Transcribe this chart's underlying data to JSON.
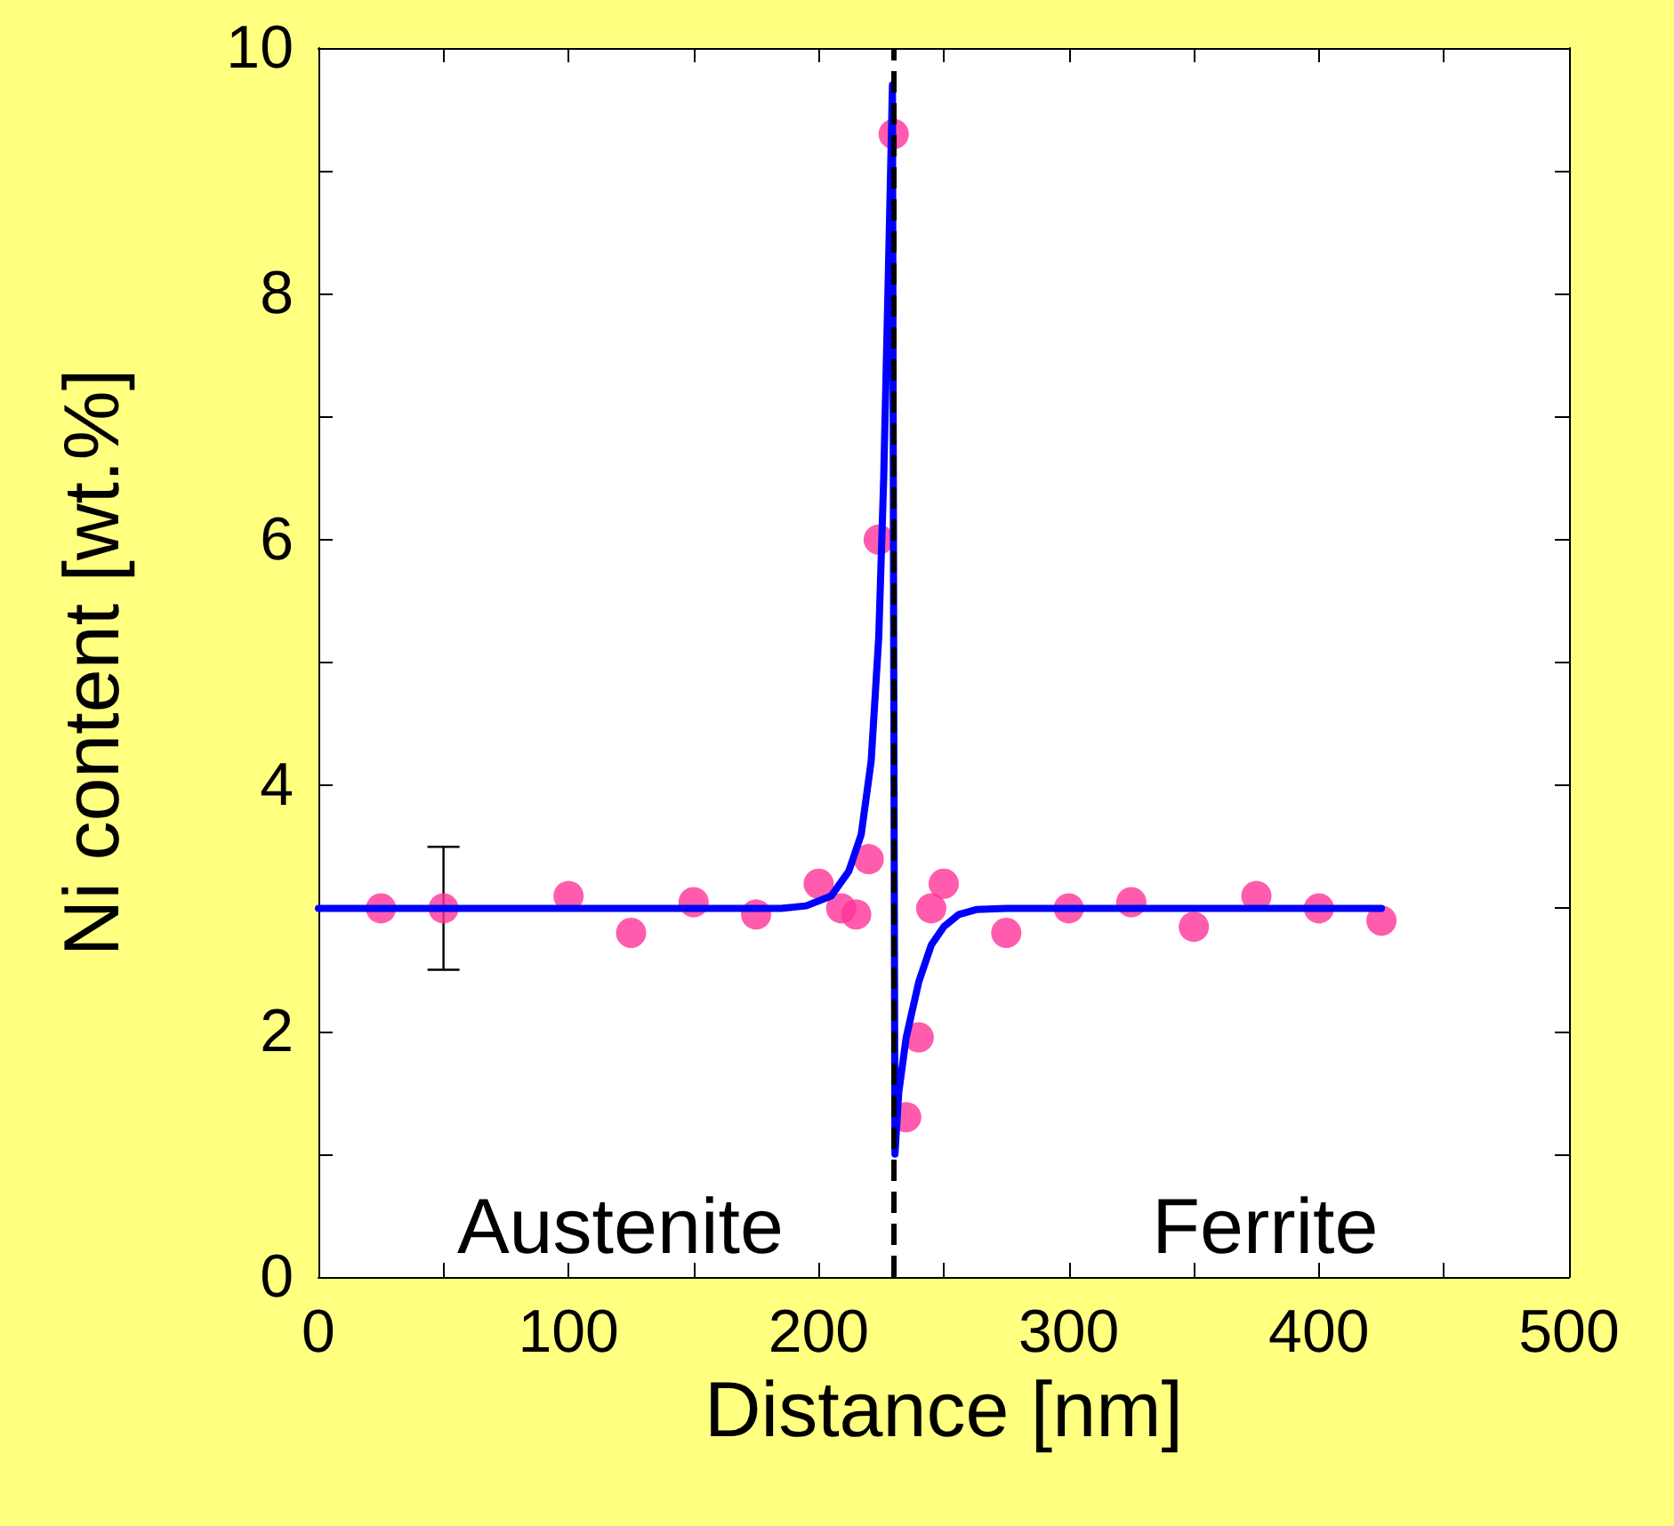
{
  "chart_data": {
    "type": "scatter",
    "xlabel": "Distance [nm]",
    "ylabel": "Ni content [wt.%]",
    "xlim": [
      0,
      500
    ],
    "ylim": [
      0,
      10
    ],
    "xticks": [
      0,
      {
        "value": 50,
        "label": null
      },
      100,
      {
        "value": 150,
        "label": null
      },
      200,
      {
        "value": 250,
        "label": null
      },
      300,
      {
        "value": 350,
        "label": null
      },
      400,
      {
        "value": 450,
        "label": null
      },
      500
    ],
    "yticks": [
      0,
      {
        "value": 1,
        "label": null
      },
      2,
      {
        "value": 3,
        "label": null
      },
      4,
      {
        "value": 5,
        "label": null
      },
      6,
      {
        "value": 7,
        "label": null
      },
      8,
      {
        "value": 9,
        "label": null
      },
      10
    ],
    "grid": false,
    "series": [
      {
        "color": "#ff3399",
        "marker": "circle",
        "x": [
          25,
          50,
          100,
          125,
          150,
          175,
          200,
          209,
          215,
          220,
          224,
          230,
          235,
          240,
          245,
          250,
          275,
          300,
          325,
          350,
          375,
          400,
          425
        ],
        "values": [
          3.0,
          3.0,
          3.1,
          2.8,
          3.05,
          2.95,
          3.2,
          3.0,
          2.95,
          3.4,
          6.0,
          9.3,
          1.3,
          1.95,
          3.0,
          3.2,
          2.8,
          3.0,
          3.05,
          2.85,
          3.1,
          3.0,
          2.9
        ],
        "errors": [
          null,
          0.5,
          null,
          null,
          null,
          null,
          null,
          null,
          null,
          null,
          null,
          null,
          null,
          null,
          null,
          null,
          null,
          null,
          null,
          null,
          null,
          null,
          null
        ]
      },
      {
        "type": "line",
        "color": "#0000ff",
        "marker": "none",
        "line_style": "solid",
        "x": [
          0,
          150,
          185,
          195,
          205,
          212,
          217,
          221,
          224,
          226,
          228,
          229.5,
          230,
          230.5,
          232,
          235,
          240,
          245,
          250,
          256,
          263,
          275,
          300,
          425
        ],
        "values": [
          3.0,
          3.0,
          3.0,
          3.02,
          3.1,
          3.3,
          3.6,
          4.2,
          5.2,
          6.5,
          8.3,
          9.7,
          5.0,
          1.0,
          1.5,
          1.95,
          2.4,
          2.7,
          2.85,
          2.95,
          2.99,
          3.0,
          3.0,
          3.0
        ]
      }
    ],
    "ref_lines": [
      {
        "axis": "x",
        "value": 230,
        "color": "#000000",
        "line_style": "dashed"
      }
    ],
    "annotations": [
      "Austenite",
      "Ferrite"
    ]
  }
}
